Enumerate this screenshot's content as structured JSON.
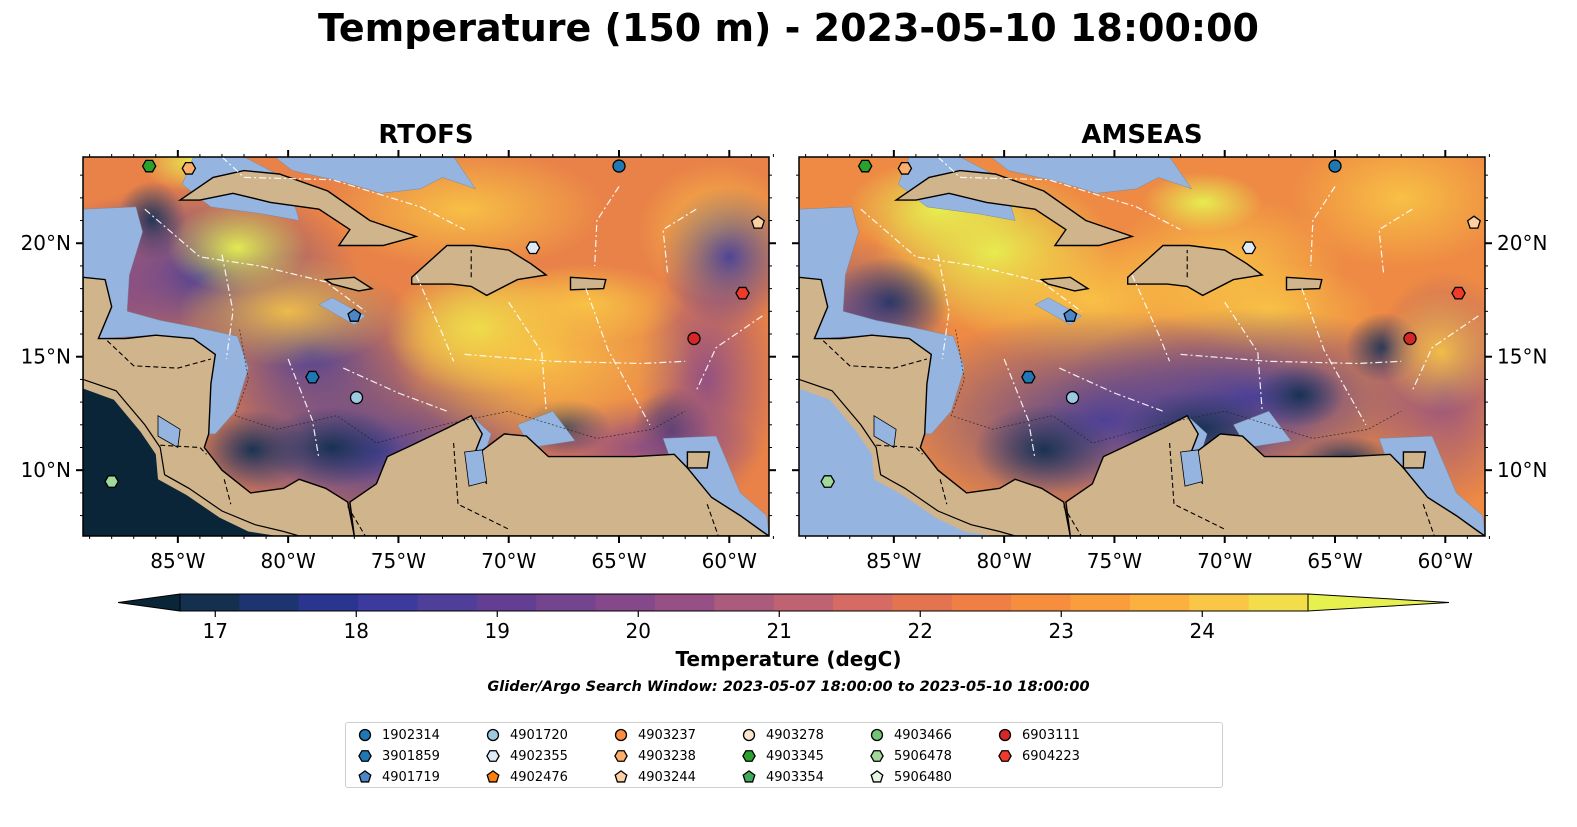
{
  "title": "Temperature (150 m) - 2023-05-10 18:00:00",
  "panels": [
    {
      "title": "RTOFS",
      "scheme": "rtofs"
    },
    {
      "title": "AMSEAS",
      "scheme": "amseas"
    }
  ],
  "axes": {
    "lon_ticks": [
      "85°W",
      "80°W",
      "75°W",
      "70°W",
      "65°W",
      "60°W"
    ],
    "lat_ticks": [
      "20°N",
      "15°N",
      "10°N"
    ]
  },
  "colorbar": {
    "label": "Temperature (degC)",
    "ticks": [
      "17",
      "18",
      "19",
      "20",
      "21",
      "22",
      "23",
      "24"
    ],
    "min": 16.75,
    "max": 24.75,
    "colors": [
      "#0b2538",
      "#13304f",
      "#1c3470",
      "#2a3590",
      "#3d3a9e",
      "#503f9a",
      "#633f93",
      "#74448f",
      "#85498b",
      "#975085",
      "#ab5b7c",
      "#bf6271",
      "#d56b62",
      "#e47450",
      "#f07f45",
      "#f68e3e",
      "#fa9d3d",
      "#fbb03f",
      "#f9c645",
      "#f3dd4b",
      "#e6f150"
    ]
  },
  "search_window": "Glider/Argo Search Window: 2023-05-07 18:00:00 to 2023-05-10 18:00:00",
  "legend": [
    {
      "id": "1902314",
      "marker": "circle",
      "color": "#1f77b4"
    },
    {
      "id": "3901859",
      "marker": "hexagon",
      "color": "#1f77b4"
    },
    {
      "id": "4901719",
      "marker": "pentagon",
      "color": "#4a86c8"
    },
    {
      "id": "4901720",
      "marker": "circle",
      "color": "#9ecae1"
    },
    {
      "id": "4902355",
      "marker": "hexagon",
      "color": "#deebf7"
    },
    {
      "id": "4902476",
      "marker": "pentagon",
      "color": "#ff7f0e"
    },
    {
      "id": "4903237",
      "marker": "circle",
      "color": "#fd8d3c"
    },
    {
      "id": "4903238",
      "marker": "hexagon",
      "color": "#fdae6b"
    },
    {
      "id": "4903244",
      "marker": "pentagon",
      "color": "#fdd0a2"
    },
    {
      "id": "4903278",
      "marker": "circle",
      "color": "#fee6ce"
    },
    {
      "id": "4903345",
      "marker": "hexagon",
      "color": "#2ca02c"
    },
    {
      "id": "4903354",
      "marker": "pentagon",
      "color": "#41ab5d"
    },
    {
      "id": "4903466",
      "marker": "circle",
      "color": "#74c476"
    },
    {
      "id": "5906478",
      "marker": "hexagon",
      "color": "#a1d99b"
    },
    {
      "id": "5906480",
      "marker": "pentagon",
      "color": "#e5f5e0"
    },
    {
      "id": "6903111",
      "marker": "circle",
      "color": "#d62728"
    },
    {
      "id": "6904223",
      "marker": "hexagon",
      "color": "#ef3b2c"
    }
  ],
  "platforms_on_map": [
    {
      "id": "4903345",
      "lon": -86.3,
      "lat": 23.4
    },
    {
      "id": "4903238",
      "lon": -84.5,
      "lat": 23.3
    },
    {
      "id": "1902314",
      "lon": -65.0,
      "lat": 23.4
    },
    {
      "id": "4903244",
      "lon": -58.7,
      "lat": 20.9
    },
    {
      "id": "4902355",
      "lon": -68.9,
      "lat": 19.8
    },
    {
      "id": "6904223",
      "lon": -59.4,
      "lat": 17.8
    },
    {
      "id": "4901719",
      "lon": -77.0,
      "lat": 16.8
    },
    {
      "id": "6903111",
      "lon": -61.6,
      "lat": 15.8
    },
    {
      "id": "3901859",
      "lon": -78.9,
      "lat": 14.1
    },
    {
      "id": "4901720",
      "lon": -76.9,
      "lat": 13.2
    },
    {
      "id": "5906478",
      "lon": -88.0,
      "lat": 9.5
    }
  ]
}
